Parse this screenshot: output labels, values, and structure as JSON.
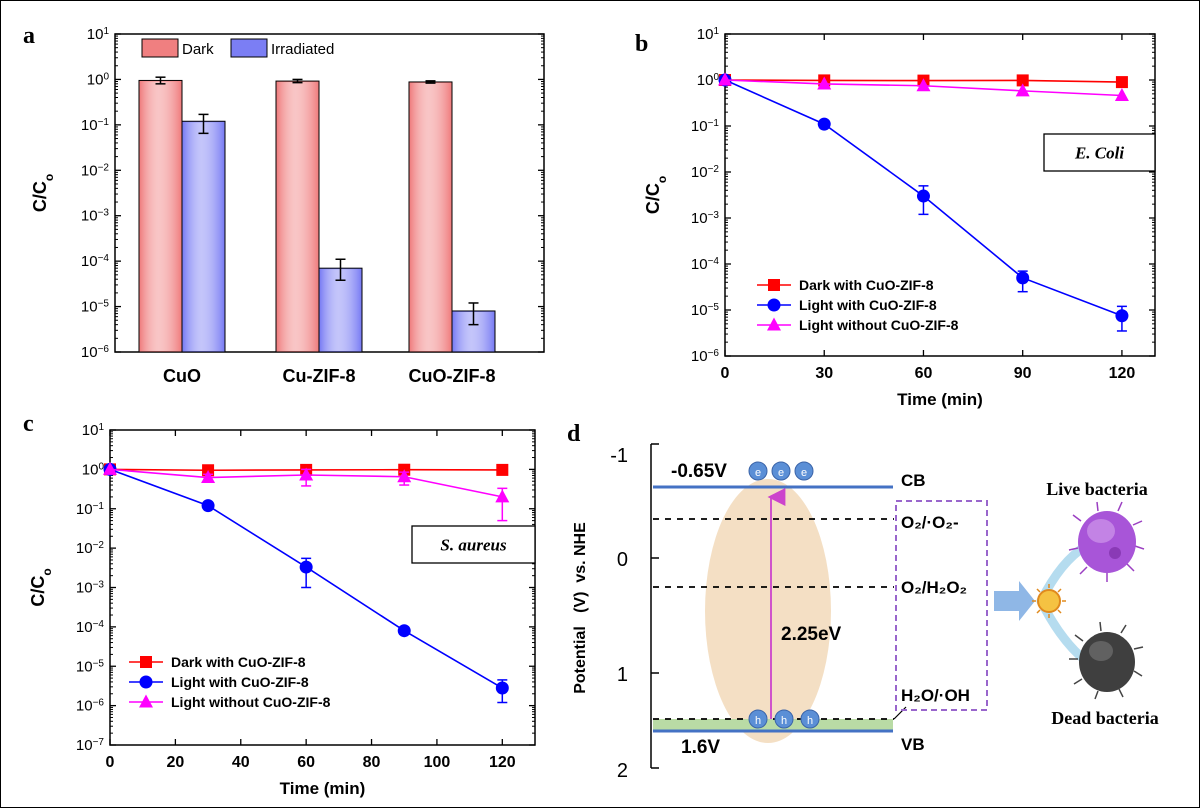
{
  "panels": {
    "a": {
      "letter": "a"
    },
    "b": {
      "letter": "b"
    },
    "c": {
      "letter": "c"
    },
    "d": {
      "letter": "d"
    }
  },
  "chart_data": [
    {
      "id": "a",
      "type": "bar",
      "yscale": "log",
      "ylabel_main": "C/C",
      "ylabel_sub": "o",
      "ylim_exp": [
        -6,
        1
      ],
      "categories": [
        "CuO",
        "Cu-ZIF-8",
        "CuO-ZIF-8"
      ],
      "series": [
        {
          "name": "Dark",
          "color": "#f07f80",
          "values": [
            0.95,
            0.92,
            0.88
          ],
          "err_lo": [
            0.8,
            0.85,
            0.83
          ],
          "err_hi": [
            1.12,
            1.0,
            0.93
          ]
        },
        {
          "name": "Irradiated",
          "color": "#7b7ef4",
          "values": [
            0.12,
            7e-05,
            8e-06
          ],
          "err_lo": [
            0.065,
            3.8e-05,
            4e-06
          ],
          "err_hi": [
            0.17,
            0.00011,
            1.2e-05
          ]
        }
      ],
      "legend": [
        "Dark",
        "Irradiated"
      ]
    },
    {
      "id": "b",
      "type": "line",
      "yscale": "log",
      "xlabel": "Time (min)",
      "ylabel_main": "C/C",
      "ylabel_sub": "o",
      "xlim": [
        0,
        130
      ],
      "xticks": [
        0,
        30,
        60,
        90,
        120
      ],
      "ylim_exp": [
        -6,
        1
      ],
      "annotation": "E. Coli",
      "series": [
        {
          "name": "Dark with CuO-ZIF-8",
          "color": "#ff0000",
          "marker": "square",
          "x": [
            0,
            30,
            60,
            90,
            120
          ],
          "y": [
            1.0,
            0.98,
            0.97,
            0.98,
            0.9
          ],
          "err_lo": [],
          "err_hi": []
        },
        {
          "name": "Light with CuO-ZIF-8",
          "color": "#0000ff",
          "marker": "circle",
          "x": [
            0,
            30,
            60,
            90,
            120
          ],
          "y": [
            1.0,
            0.11,
            0.003,
            5e-05,
            7.5e-06
          ],
          "err_lo": [
            1.0,
            0.11,
            0.0012,
            2.5e-05,
            3.5e-06
          ],
          "err_hi": [
            1.0,
            0.11,
            0.005,
            7e-05,
            1.2e-05
          ]
        },
        {
          "name": "Light without CuO-ZIF-8",
          "color": "#ff00ff",
          "marker": "triangle",
          "x": [
            0,
            30,
            60,
            90,
            120
          ],
          "y": [
            1.0,
            0.82,
            0.75,
            0.58,
            0.46
          ],
          "err_lo": [],
          "err_hi": []
        }
      ]
    },
    {
      "id": "c",
      "type": "line",
      "yscale": "log",
      "xlabel": "Time (min)",
      "ylabel_main": "C/C",
      "ylabel_sub": "o",
      "xlim": [
        0,
        130
      ],
      "xticks": [
        0,
        20,
        40,
        60,
        80,
        100,
        120
      ],
      "ylim_exp": [
        -7,
        1
      ],
      "annotation": "S. aureus",
      "series": [
        {
          "name": "Dark with CuO-ZIF-8",
          "color": "#ff0000",
          "marker": "square",
          "x": [
            0,
            30,
            60,
            90,
            120
          ],
          "y": [
            1.0,
            0.95,
            0.97,
            0.98,
            0.97
          ],
          "err_lo": [],
          "err_hi": []
        },
        {
          "name": "Light with CuO-ZIF-8",
          "color": "#0000ff",
          "marker": "circle",
          "x": [
            0,
            30,
            60,
            90,
            120
          ],
          "y": [
            1.0,
            0.12,
            0.0033,
            8e-05,
            2.8e-06
          ],
          "err_lo": [
            1.0,
            0.1,
            0.001,
            6.5e-05,
            1.2e-06
          ],
          "err_hi": [
            1.0,
            0.14,
            0.0055,
            9.5e-05,
            4.5e-06
          ]
        },
        {
          "name": "Light without CuO-ZIF-8",
          "color": "#ff00ff",
          "marker": "triangle",
          "x": [
            0,
            30,
            60,
            90,
            120
          ],
          "y": [
            1.0,
            0.62,
            0.72,
            0.65,
            0.2
          ],
          "err_lo": [
            1.0,
            0.5,
            0.38,
            0.4,
            0.05
          ],
          "err_hi": [
            1.0,
            0.75,
            1.0,
            0.85,
            0.33
          ]
        }
      ]
    }
  ],
  "diagram": {
    "axis_label": "Potential   (V)  vs. NHE",
    "ticks": [
      "-1",
      "0",
      "1",
      "2"
    ],
    "cb_value": "-0.65V",
    "vb_value": "1.6V",
    "cb_label": "CB",
    "vb_label": "VB",
    "gap_label": "2.25eV",
    "electron": "e",
    "hole": "h",
    "couples": [
      "O₂/·O₂-",
      "O₂/H₂O₂",
      "H₂O/·OH"
    ],
    "live_label": "Live bacteria",
    "dead_label": "Dead bacteria"
  }
}
